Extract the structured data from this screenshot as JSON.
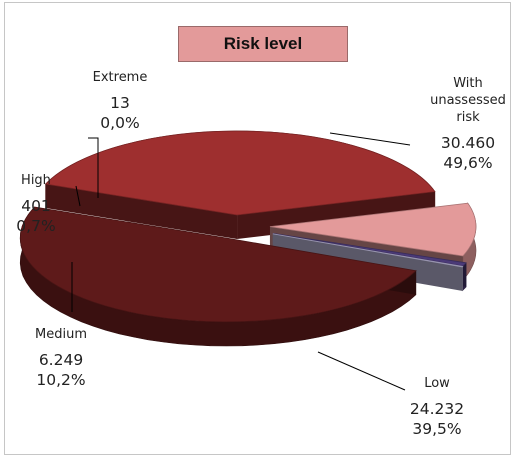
{
  "chart_data": {
    "type": "pie",
    "title": "Risk level",
    "slices": [
      {
        "label": "With unassessed risk",
        "label_lines": [
          "With",
          "unassessed",
          "risk"
        ],
        "value_text": "30.460",
        "value": 30460,
        "percent_text": "49,6%",
        "color": "#5e1a1a"
      },
      {
        "label": "Low",
        "label_lines": [
          "Low"
        ],
        "value_text": "24.232",
        "value": 24232,
        "percent_text": "39,5%",
        "color": "#9e2f2f"
      },
      {
        "label": "Medium",
        "label_lines": [
          "Medium"
        ],
        "value_text": "6.249",
        "value": 6249,
        "percent_text": "10,2%",
        "color": "#e39a9a"
      },
      {
        "label": "High",
        "label_lines": [
          "High"
        ],
        "value_text": "401",
        "value": 401,
        "percent_text": "0,7%",
        "color": "#4b3a78"
      },
      {
        "label": "Extreme",
        "label_lines": [
          "Extreme"
        ],
        "value_text": "13",
        "value": 13,
        "percent_text": "0,0%",
        "color": "#c9c4e8"
      }
    ],
    "exploded": true,
    "style": "3d"
  }
}
